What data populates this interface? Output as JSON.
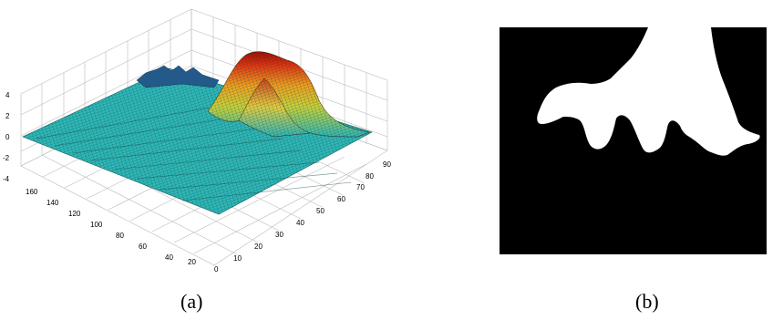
{
  "figure": {
    "panel_a": {
      "caption": "(a)",
      "z_axis_ticks": [
        "4",
        "2",
        "0",
        "-2",
        "-4"
      ],
      "left_axis_ticks": [
        "160",
        "140",
        "120",
        "100",
        "80",
        "60",
        "40",
        "20"
      ],
      "right_axis_ticks": [
        "0",
        "10",
        "20",
        "30",
        "40",
        "50",
        "60",
        "70",
        "80",
        "90"
      ],
      "colormap": [
        "#0000a0",
        "#00ffff",
        "#ffff00",
        "#ff0000",
        "#800000"
      ],
      "surface_color": "#2fb7b7"
    },
    "panel_b": {
      "caption": "(b)",
      "background_color": "#000000",
      "foreground_color": "#ffffff"
    }
  }
}
